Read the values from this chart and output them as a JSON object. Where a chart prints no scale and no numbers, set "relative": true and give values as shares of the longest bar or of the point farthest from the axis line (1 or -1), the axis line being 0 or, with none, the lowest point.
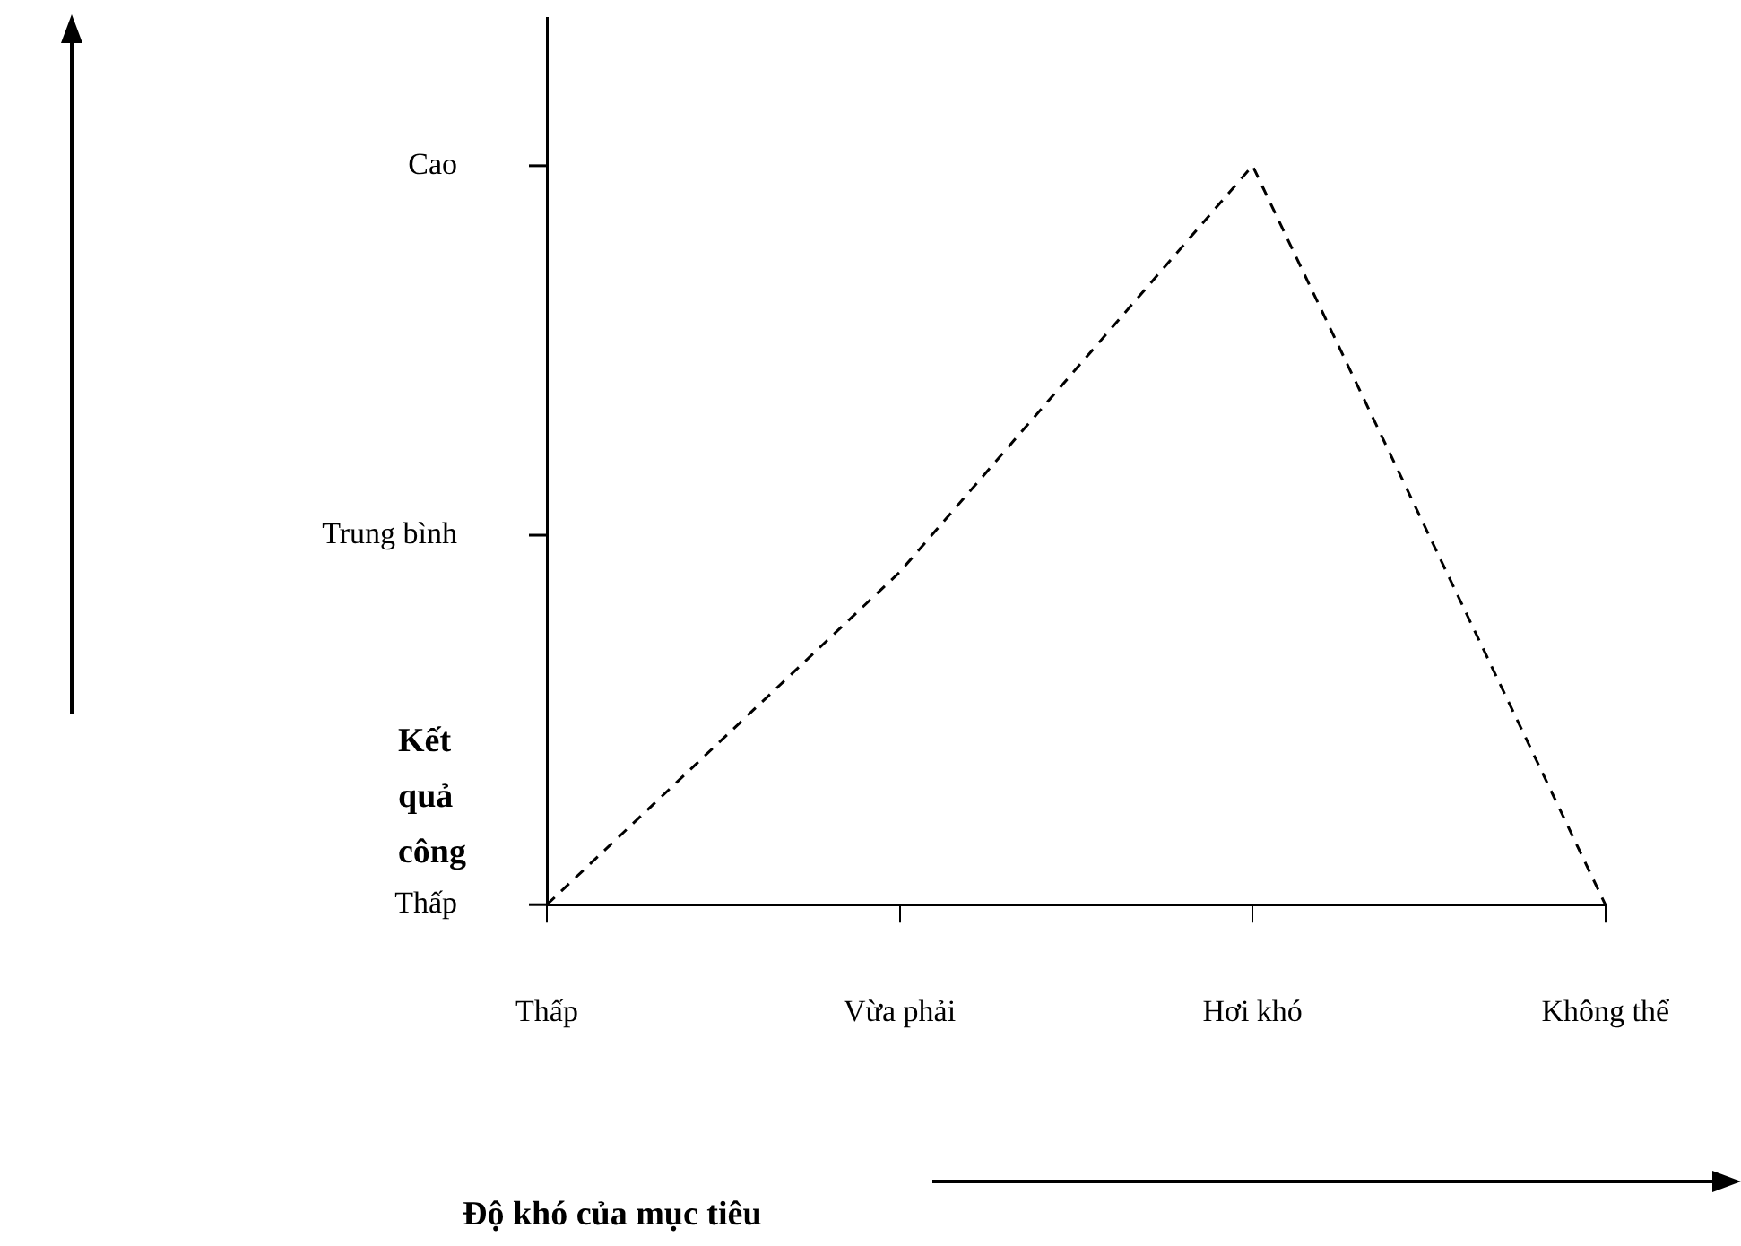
{
  "chart_data": {
    "type": "line",
    "xlabel": "Độ khó của mục tiêu",
    "ylabel": "Kết quả công",
    "categories": [
      "Thấp",
      "Vừa phải",
      "Hơi khó",
      "Không thể"
    ],
    "series": [
      {
        "color": "#000000",
        "values": [
          0,
          0.45,
          1,
          0
        ]
      }
    ],
    "relative": true,
    "annotations": [
      "Thấp",
      "Trung bình",
      "Cao"
    ],
    "grid": false,
    "legend": false,
    "line_style": "dashed",
    "marker": "none"
  }
}
